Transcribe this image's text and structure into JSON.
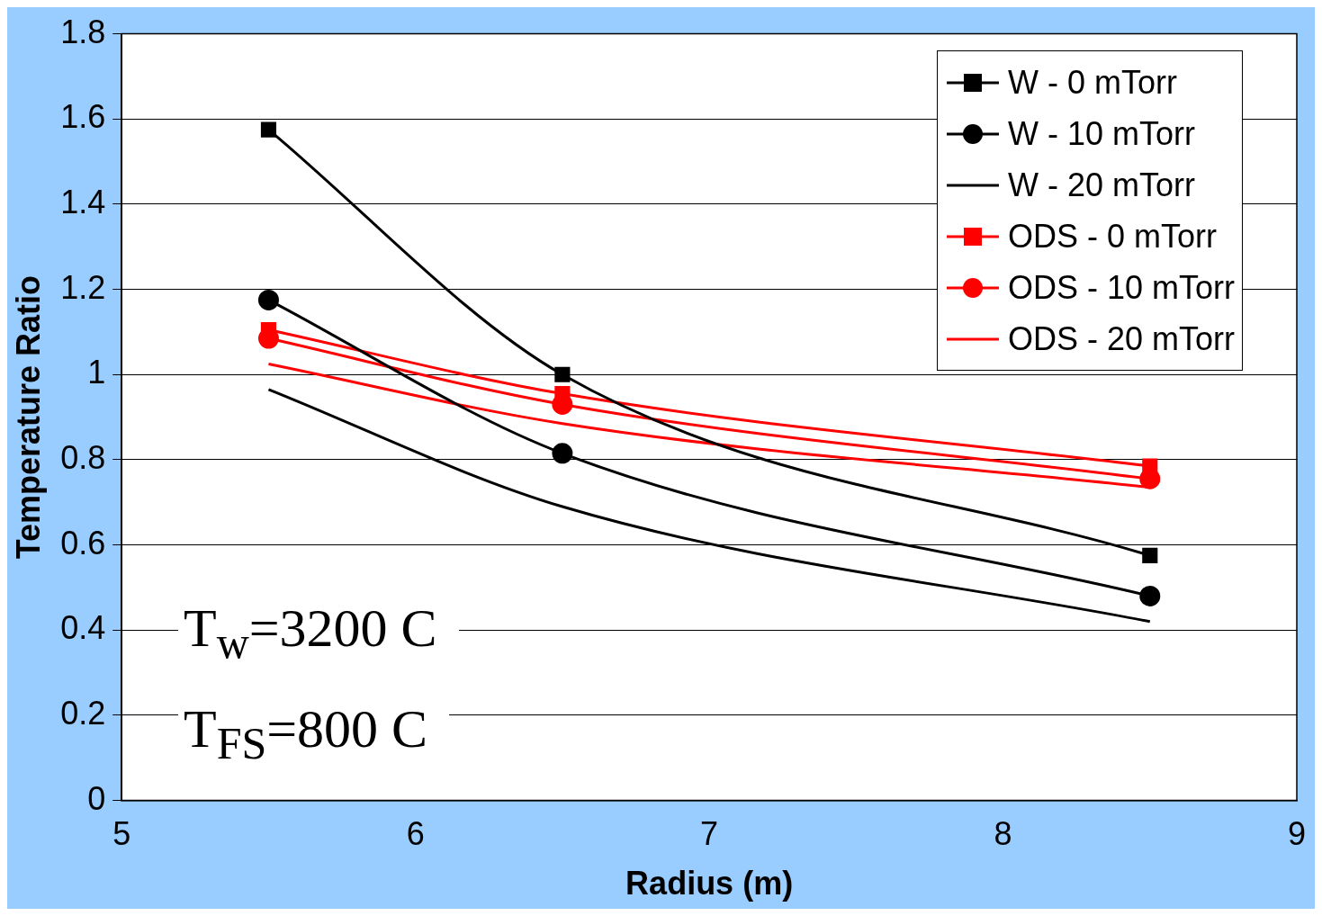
{
  "chart_data": {
    "type": "line",
    "xlabel": "Radius (m)",
    "ylabel": "Temperature Ratio",
    "x": [
      5.5,
      6.5,
      8.5
    ],
    "series": [
      {
        "name": "W - 0 mTorr",
        "color": "#000000",
        "marker": "square",
        "values": [
          1.575,
          1.0,
          0.575
        ]
      },
      {
        "name": "W - 10 mTorr",
        "color": "#000000",
        "marker": "circle",
        "values": [
          1.175,
          0.815,
          0.48
        ]
      },
      {
        "name": "W - 20 mTorr",
        "color": "#000000",
        "marker": "none",
        "values": [
          0.965,
          0.69,
          0.42
        ]
      },
      {
        "name": "ODS - 0 mTorr",
        "color": "#ff0000",
        "marker": "square",
        "values": [
          1.105,
          0.955,
          0.785
        ]
      },
      {
        "name": "ODS - 10 mTorr",
        "color": "#ff0000",
        "marker": "circle",
        "values": [
          1.085,
          0.93,
          0.755
        ]
      },
      {
        "name": "ODS - 20 mTorr",
        "color": "#ff0000",
        "marker": "none",
        "values": [
          1.025,
          0.885,
          0.735
        ]
      }
    ],
    "xlim": [
      5,
      9
    ],
    "xticks": [
      5,
      6,
      7,
      8,
      9
    ],
    "ylim": [
      0,
      1.8
    ],
    "yticks": [
      0,
      0.2,
      0.4,
      0.6,
      0.8,
      1,
      1.2,
      1.4,
      1.6,
      1.8
    ],
    "grid": "y",
    "legend": "top right",
    "line_style": "solid",
    "annotations": [
      "T$_{w}$=3200 C",
      "T$_{FS}$=800 C"
    ]
  }
}
